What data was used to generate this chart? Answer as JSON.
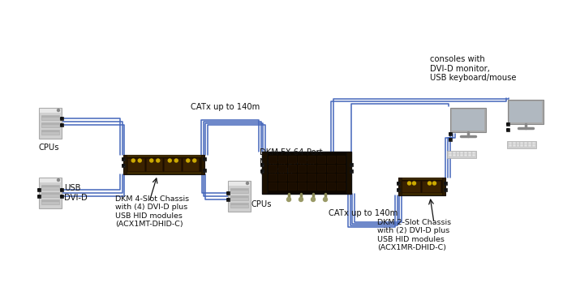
{
  "bg_color": "#ffffff",
  "line_color": "#4466bb",
  "arrow_color": "#111111",
  "cpu_color": "#d0d0d0",
  "cpu_border": "#aaaaaa",
  "cpu_dark": "#888888",
  "monitor_color": "#c8c8c8",
  "monitor_border": "#999999",
  "monitor_screen": "#b0b8c0",
  "keyboard_color": "#d5d5d5",
  "chassis_dark": "#1a0e00",
  "chassis_mid": "#2d1a00",
  "chassis_slot": "#3a2200",
  "chassis_border": "#111111",
  "matrix_dark": "#110800",
  "matrix_port": "#221100",
  "yellow": "#ccaa00",
  "connector_dark": "#222222",
  "connector_mid": "#555555",
  "text_color": "#111111",
  "label_fontsize": 7.2,
  "small_fontsize": 6.8,
  "catx_label1": "CATx up to 140m",
  "catx_label2": "CATx up to 140m",
  "dkm_fx_label": "DKM FX 64-Port-\nMatrix Switch\n(ACX64)",
  "dkm_4slot_label": "DKM 4-Slot Chassis\nwith (4) DVI-D plus\nUSB HID modules\n(ACX1MT-DHID-C)",
  "dkm_2slot_label": "DKM 2-Slot Chassis\nwith (2) DVI-D plus\nUSB HID modules\n(ACX1MR-DHID-C)",
  "cpus_label1": "CPUs",
  "cpus_label2": "CPUs",
  "usb_label": "USB",
  "dvid_label": "DVI-D",
  "consoles_label": "consoles with\nDVI-D monitor,\nUSB keyboard/mouse"
}
